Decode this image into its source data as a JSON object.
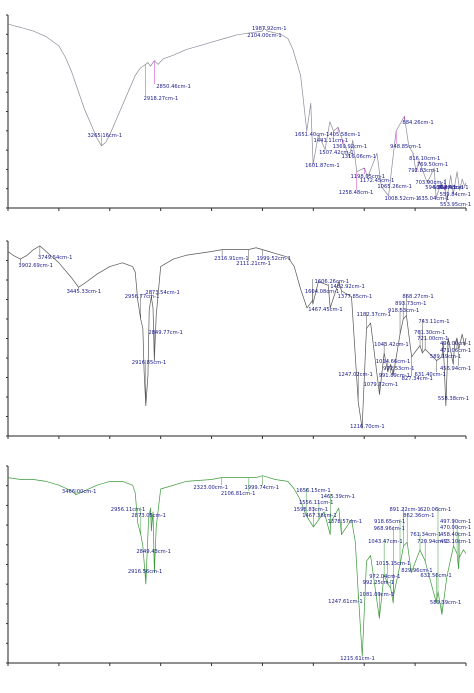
{
  "chart_data": [
    {
      "type": "line",
      "xlabel": "",
      "ylabel": "",
      "xlim": [
        4000,
        400
      ],
      "line_color": "#8c8c9c",
      "leader_color": "#cc33cc",
      "x": [
        4000,
        3960,
        3900,
        3800,
        3700,
        3600,
        3550,
        3500,
        3450,
        3400,
        3350,
        3300,
        3265.16,
        3230,
        3200,
        3150,
        3100,
        3050,
        3000,
        2960,
        2918.27,
        2900,
        2880,
        2850.46,
        2820,
        2780,
        2700,
        2600,
        2500,
        2400,
        2300,
        2200,
        2104.0,
        2050,
        2000,
        1987.92,
        1960,
        1900,
        1850,
        1800,
        1760,
        1700,
        1651.4,
        1620,
        1601.87,
        1560,
        1507.42,
        1470,
        1441.11,
        1405.58,
        1369.92,
        1316.06,
        1290,
        1258.48,
        1198.05,
        1172.45,
        1100,
        1065.26,
        1008.52,
        960,
        948.85,
        884.26,
        850,
        816.1,
        792.83,
        769.5,
        703.9,
        650,
        635.04,
        594.2,
        566.47,
        562.43,
        559.84,
        553.95,
        520,
        500,
        470,
        450,
        430,
        410,
        400
      ],
      "y": [
        98,
        97,
        96,
        94,
        91,
        86,
        80,
        72,
        62,
        52,
        44,
        36,
        32,
        34,
        38,
        46,
        54,
        62,
        70,
        74,
        76,
        77,
        75,
        78,
        76,
        79,
        81,
        84,
        86,
        88,
        90,
        92,
        93,
        93.5,
        94,
        95.5,
        94,
        93,
        92,
        90,
        84,
        70,
        40,
        55,
        22,
        38,
        30,
        45,
        40,
        42,
        35,
        26,
        35,
        18,
        20,
        15,
        28,
        10,
        5,
        34,
        40,
        48,
        32,
        28,
        18,
        24,
        12,
        20,
        4,
        12,
        8,
        14,
        6,
        2,
        16,
        6,
        18,
        8,
        14,
        10,
        12
      ],
      "labels": [
        "3265.16cm-1",
        "2918.27cm-1",
        "2850.46cm-1",
        "2104.00cm-1",
        "1987.92cm-1",
        "1651.40cm-1",
        "1601.87cm-1",
        "1507.42cm-1",
        "1441.11cm-1",
        "1405.58cm-1",
        "1369.92cm-1",
        "1316.06cm-1",
        "1258.48cm-1",
        "1198.05cm-1",
        "1172.45cm-1",
        "1065.26cm-1",
        "1008.52cm-1",
        "948.85cm-1",
        "884.26cm-1",
        "816.10cm-1",
        "792.83cm-1",
        "769.50cm-1",
        "703.90cm-1",
        "635.04cm-1",
        "594.20cm-1",
        "566.47cm-1",
        "562.43cm-1",
        "559.84cm-1",
        "553.95cm-1"
      ]
    },
    {
      "type": "line",
      "xlabel": "",
      "ylabel": "",
      "xlim": [
        4000,
        400
      ],
      "line_color": "#555555",
      "leader_color": "#555555",
      "x": [
        4000,
        3960,
        3902.69,
        3850,
        3800,
        3749.54,
        3700,
        3600,
        3500,
        3445.33,
        3400,
        3300,
        3200,
        3100,
        3020,
        3000,
        2980,
        2956.77,
        2940,
        2930,
        2916.85,
        2900,
        2890,
        2873.54,
        2860,
        2849.77,
        2835,
        2800,
        2700,
        2600,
        2500,
        2400,
        2316.91,
        2250,
        2111.21,
        2050,
        1999.52,
        1950,
        1900,
        1800,
        1750,
        1700,
        1650,
        1606.26,
        1604.08,
        1560,
        1482.92,
        1467.45,
        1400,
        1377.85,
        1300,
        1247.02,
        1216.7,
        1182.37,
        1150,
        1079.72,
        1043.42,
        1014.66,
        991.89,
        972.53,
        918.53,
        893.73,
        868.27,
        827.34,
        761.3,
        743.11,
        721.0,
        631.4,
        589.19,
        579.0,
        558.38,
        540,
        500,
        490.0,
        471.06,
        456.94,
        430,
        410,
        400
      ],
      "y": [
        96,
        94,
        92,
        94,
        97,
        99,
        96,
        90,
        82,
        77,
        79,
        84,
        88,
        90,
        88,
        85,
        70,
        60,
        55,
        32,
        14,
        30,
        65,
        72,
        66,
        38,
        62,
        88,
        92,
        94,
        95,
        96,
        97,
        97,
        97,
        98,
        97,
        96,
        95,
        93,
        88,
        76,
        66,
        70,
        68,
        80,
        78,
        66,
        80,
        75,
        72,
        16,
        2,
        55,
        58,
        20,
        42,
        32,
        36,
        30,
        52,
        60,
        62,
        40,
        46,
        42,
        44,
        38,
        40,
        48,
        14,
        50,
        36,
        46,
        50,
        44,
        52,
        46,
        50
      ],
      "labels": [
        "3902.69cm-1",
        "3749.54cm-1",
        "3445.33cm-1",
        "2956.77cm-1",
        "2873.54cm-1",
        "2849.77cm-1",
        "2916.85cm-1",
        "2316.91cm-1",
        "1999.52cm-1",
        "2111.21cm-1",
        "1606.26cm-1",
        "1604.08cm-1",
        "1482.92cm-1",
        "1377.85cm-1",
        "1467.45cm-1",
        "1182.37cm-1",
        "868.27cm-1",
        "893.73cm-1",
        "918.53cm-1",
        "743.11cm-1",
        "761.30cm-1",
        "721.00cm-1",
        "1043.42cm-1",
        "1014.66cm-1",
        "972.53cm-1",
        "991.89cm-1",
        "827.34cm-1",
        "631.40cm-1",
        "490.00cm-1",
        "471.06cm-1",
        "589.19cm-1",
        "456.94cm-1",
        "1247.02cm-1",
        "1079.72cm-1",
        "558.38cm-1",
        "1216.70cm-1"
      ]
    },
    {
      "type": "line",
      "xlabel": "",
      "ylabel": "",
      "xlim": [
        4000,
        400
      ],
      "line_color": "#3a9a3a",
      "leader_color": "#3a9a3a",
      "x": [
        4000,
        3900,
        3800,
        3700,
        3600,
        3500,
        3466.0,
        3400,
        3300,
        3200,
        3100,
        3020,
        3000,
        2980,
        2956.11,
        2940,
        2916.56,
        2895,
        2880,
        2873.05,
        2860,
        2849.43,
        2835,
        2800,
        2600,
        2400,
        2323.0,
        2200,
        2106.81,
        2050,
        1999.74,
        1950,
        1900,
        1800,
        1750,
        1700,
        1656.15,
        1598.83,
        1556.11,
        1515.0,
        1467.38,
        1465.39,
        1400,
        1378.57,
        1300,
        1270,
        1247.61,
        1215.61,
        1182,
        1150,
        1081.09,
        1043.47,
        1015.15,
        992.25,
        972.04,
        968.96,
        918.65,
        891.22,
        862.36,
        829.96,
        761.34,
        720.94,
        632.56,
        620.06,
        589.39,
        550,
        497.9,
        470.0,
        458.4,
        453.1,
        420,
        400
      ],
      "y": [
        96,
        95,
        95,
        94,
        92,
        89,
        87,
        89,
        92,
        94,
        94,
        92,
        88,
        72,
        66,
        60,
        40,
        74,
        80,
        68,
        78,
        46,
        70,
        90,
        94,
        95,
        96,
        96,
        96,
        96,
        97,
        96,
        95,
        94,
        90,
        84,
        76,
        70,
        74,
        78,
        66,
        72,
        80,
        66,
        74,
        62,
        36,
        2,
        52,
        55,
        22,
        45,
        40,
        38,
        30,
        34,
        50,
        60,
        62,
        46,
        58,
        52,
        30,
        36,
        24,
        44,
        60,
        56,
        48,
        54,
        58,
        56
      ],
      "labels": [
        "3466.00cm-1",
        "2956.11cm-1",
        "2873.05cm-1",
        "2849.43cm-1",
        "2916.56cm-1",
        "2323.00cm-1",
        "1999.74cm-1",
        "2106.81cm-1",
        "1656.15cm-1",
        "1465.39cm-1",
        "1556.11cm-1",
        "1598.83cm-1",
        "1467.38cm-1",
        "1378.57cm-1",
        "891.22cm-1",
        "918.65cm-1",
        "862.36cm-1",
        "968.96cm-1",
        "761.34cm-1",
        "1043.47cm-1",
        "720.94cm-1",
        "1015.15cm-1",
        "829.96cm-1",
        "972.04cm-1",
        "992.25cm-1",
        "620.06cm-1",
        "497.90cm-1",
        "470.00cm-1",
        "458.40cm-1",
        "453.10cm-1",
        "632.56cm-1",
        "1081.09cm-1",
        "1247.61cm-1",
        "589.39cm-1",
        "1215.61cm-1"
      ]
    }
  ]
}
